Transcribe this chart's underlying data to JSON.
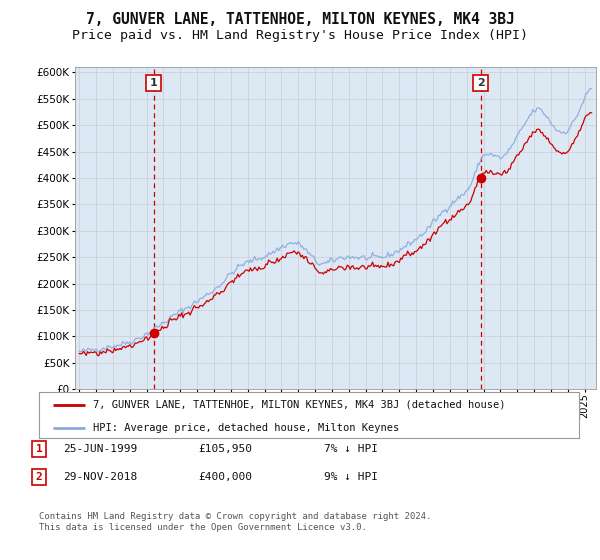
{
  "title": "7, GUNVER LANE, TATTENHOE, MILTON KEYNES, MK4 3BJ",
  "subtitle": "Price paid vs. HM Land Registry's House Price Index (HPI)",
  "title_fontsize": 10.5,
  "subtitle_fontsize": 9.5,
  "sale1_date_str": "25-JUN-1999",
  "sale1_price": 105950,
  "sale1_year": 1999,
  "sale1_month": 6,
  "sale2_date_str": "29-NOV-2018",
  "sale2_price": 400000,
  "sale2_year": 2018,
  "sale2_month": 11,
  "sale1_note": "25-JUN-1999          £105,950          7% ↓ HPI",
  "sale2_note": "29-NOV-2018          £400,000          9% ↓ HPI",
  "legend_line1": "7, GUNVER LANE, TATTENHOE, MILTON KEYNES, MK4 3BJ (detached house)",
  "legend_line2": "HPI: Average price, detached house, Milton Keynes",
  "footer": "Contains HM Land Registry data © Crown copyright and database right 2024.\nThis data is licensed under the Open Government Licence v3.0.",
  "sale_color": "#cc0000",
  "hpi_color": "#88aadd",
  "grid_color": "#cccccc",
  "bg_color": "#dde8f5",
  "plot_bg": "#ffffff",
  "ylim_min": 0,
  "ylim_max": 610000,
  "yticks": [
    0,
    50000,
    100000,
    150000,
    200000,
    250000,
    300000,
    350000,
    400000,
    450000,
    500000,
    550000,
    600000
  ],
  "ytick_labels": [
    "£0",
    "£50K",
    "£100K",
    "£150K",
    "£200K",
    "£250K",
    "£300K",
    "£350K",
    "£400K",
    "£450K",
    "£500K",
    "£550K",
    "£600K"
  ]
}
